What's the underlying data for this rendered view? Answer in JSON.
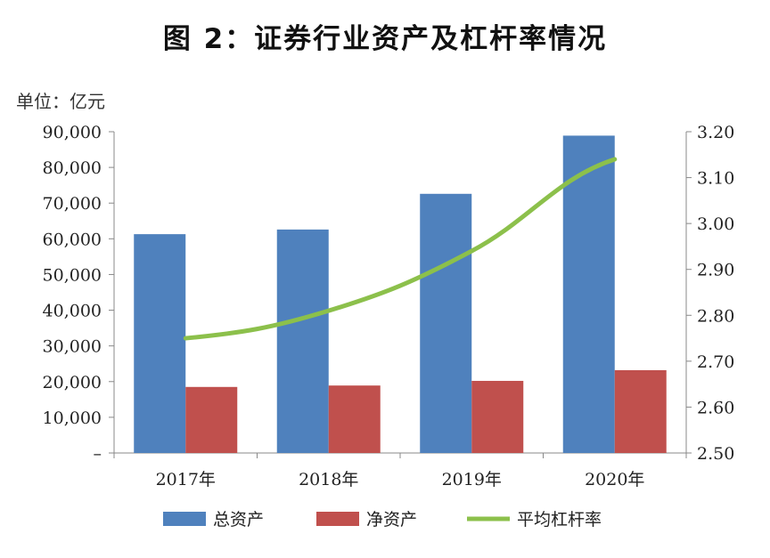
{
  "title": "图 2：证券行业资产及杠杆率情况",
  "unit_label": "单位：亿元",
  "chart_data": {
    "type": "bar",
    "categories": [
      "2017年",
      "2018年",
      "2019年",
      "2020年"
    ],
    "series": [
      {
        "name": "总资产",
        "type": "bar",
        "axis": "left",
        "color": "#4f81bd",
        "values": [
          61300,
          62600,
          72600,
          88900
        ]
      },
      {
        "name": "净资产",
        "type": "bar",
        "axis": "left",
        "color": "#c0504d",
        "values": [
          18500,
          18900,
          20200,
          23200
        ]
      },
      {
        "name": "平均杠杆率",
        "type": "line",
        "axis": "right",
        "color": "#8cc04b",
        "values": [
          2.75,
          2.81,
          2.94,
          3.14
        ]
      }
    ],
    "y_left": {
      "ylim": [
        0,
        90000
      ],
      "tick_labels": [
        "–",
        "10,000",
        "20,000",
        "30,000",
        "40,000",
        "50,000",
        "60,000",
        "70,000",
        "80,000",
        "90,000"
      ]
    },
    "y_right": {
      "ylim": [
        2.5,
        3.2
      ],
      "tick_labels": [
        "2.50",
        "2.60",
        "2.70",
        "2.80",
        "2.90",
        "3.00",
        "3.10",
        "3.20"
      ]
    },
    "legend_position": "bottom",
    "grid": false
  }
}
